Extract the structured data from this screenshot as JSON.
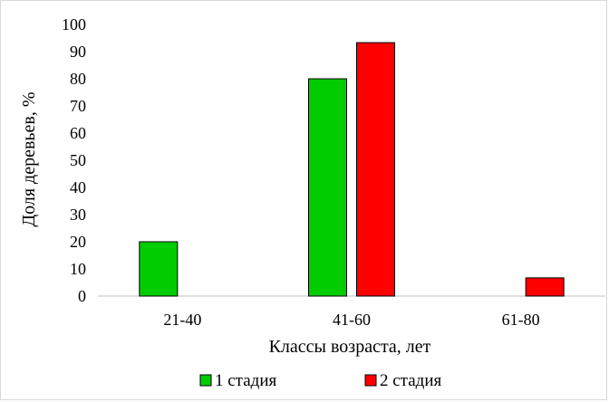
{
  "chart_data": {
    "type": "bar",
    "categories": [
      "21-40",
      "41-60",
      "61-80"
    ],
    "series": [
      {
        "name": "1 стадия",
        "color": "#00cc00",
        "values": [
          20,
          80,
          0
        ]
      },
      {
        "name": "2 стадия",
        "color": "#ff0000",
        "values": [
          0,
          93.3,
          6.7
        ]
      }
    ],
    "title": "",
    "xlabel": "Классы возраста, лет",
    "ylabel": "Доля деревьев, %",
    "ylim": [
      0,
      100
    ],
    "yticks": [
      0,
      10,
      20,
      30,
      40,
      50,
      60,
      70,
      80,
      90,
      100
    ],
    "grid": false,
    "legend_position": "bottom"
  }
}
